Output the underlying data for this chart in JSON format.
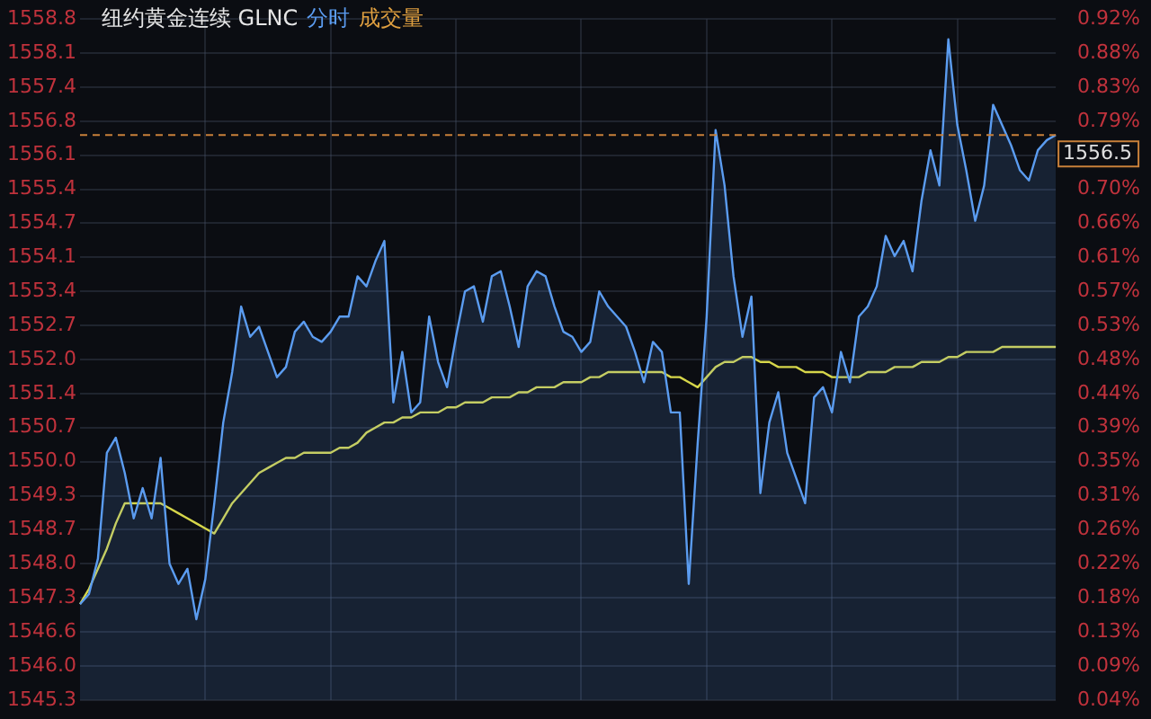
{
  "chart_data": {
    "type": "area",
    "title": "纽约黄金连续 GLNC",
    "annotations": [
      "成交量"
    ],
    "categories": [
      null,
      null,
      null,
      null,
      null,
      null,
      null,
      null,
      null,
      null,
      null,
      null,
      null,
      null,
      null,
      null,
      null,
      null,
      null,
      null,
      null,
      null,
      null,
      null,
      null,
      null,
      null,
      null,
      null,
      null,
      null,
      null,
      null,
      null,
      null,
      null,
      null,
      null,
      null,
      null,
      null,
      null,
      null,
      null,
      null,
      null,
      null,
      null,
      null,
      null,
      null,
      null,
      null,
      null,
      null,
      null,
      null,
      null,
      null,
      null,
      null,
      null,
      null,
      null,
      null,
      null,
      null,
      null,
      null,
      null,
      null,
      null,
      null,
      null,
      null,
      null,
      null,
      null,
      null,
      null,
      null,
      null,
      null,
      null,
      null,
      null,
      null,
      null,
      null,
      null,
      null,
      null,
      null,
      null,
      null,
      null,
      null,
      null,
      null,
      null,
      null,
      null,
      null,
      null,
      null,
      null,
      null,
      null,
      null,
      null
    ],
    "series": [
      {
        "name": "分时",
        "type": "area",
        "color": "#5b9cf0",
        "values": [
          1547.2,
          1547.4,
          1548.1,
          1550.2,
          1550.5,
          1549.8,
          1548.9,
          1549.5,
          1548.9,
          1550.1,
          1548.0,
          1547.6,
          1547.9,
          1546.9,
          1547.7,
          1549.2,
          1550.8,
          1551.8,
          1553.1,
          1552.5,
          1552.7,
          1552.2,
          1551.7,
          1551.9,
          1552.6,
          1552.8,
          1552.5,
          1552.4,
          1552.6,
          1552.9,
          1552.9,
          1553.7,
          1553.5,
          1554.0,
          1554.4,
          1551.2,
          1552.2,
          1551.0,
          1551.2,
          1552.9,
          1552.0,
          1551.5,
          1552.5,
          1553.4,
          1553.5,
          1552.8,
          1553.7,
          1553.8,
          1553.1,
          1552.3,
          1553.5,
          1553.8,
          1553.7,
          1553.1,
          1552.6,
          1552.5,
          1552.2,
          1552.4,
          1553.4,
          1553.1,
          1552.9,
          1552.7,
          1552.2,
          1551.6,
          1552.4,
          1552.2,
          1551.0,
          1551.0,
          1547.6,
          1550.4,
          1552.9,
          1556.6,
          1555.5,
          1553.7,
          1552.5,
          1553.3,
          1549.4,
          1550.8,
          1551.4,
          1550.2,
          1549.7,
          1549.2,
          1551.3,
          1551.5,
          1551.0,
          1552.2,
          1551.6,
          1552.9,
          1553.1,
          1553.5,
          1554.5,
          1554.1,
          1554.4,
          1553.8,
          1555.2,
          1556.2,
          1555.5,
          1558.4,
          1556.7,
          1555.8,
          1554.8,
          1555.5,
          1557.1,
          1556.7,
          1556.3,
          1555.8,
          1555.6,
          1556.2,
          1556.4,
          1556.5
        ]
      },
      {
        "type": "line",
        "color": "#d6d64a",
        "values": [
          1547.2,
          1547.5,
          1547.9,
          1548.3,
          1548.8,
          1549.2,
          1549.2,
          1549.2,
          1549.2,
          1549.2,
          1549.1,
          1549.0,
          1548.9,
          1548.8,
          1548.7,
          1548.6,
          1548.9,
          1549.2,
          1549.4,
          1549.6,
          1549.8,
          1549.9,
          1550.0,
          1550.1,
          1550.1,
          1550.2,
          1550.2,
          1550.2,
          1550.2,
          1550.3,
          1550.3,
          1550.4,
          1550.6,
          1550.7,
          1550.8,
          1550.8,
          1550.9,
          1550.9,
          1551.0,
          1551.0,
          1551.0,
          1551.1,
          1551.1,
          1551.2,
          1551.2,
          1551.2,
          1551.3,
          1551.3,
          1551.3,
          1551.4,
          1551.4,
          1551.5,
          1551.5,
          1551.5,
          1551.6,
          1551.6,
          1551.6,
          1551.7,
          1551.7,
          1551.8,
          1551.8,
          1551.8,
          1551.8,
          1551.8,
          1551.8,
          1551.8,
          1551.7,
          1551.7,
          1551.6,
          1551.5,
          1551.7,
          1551.9,
          1552.0,
          1552.0,
          1552.1,
          1552.1,
          1552.0,
          1552.0,
          1551.9,
          1551.9,
          1551.9,
          1551.8,
          1551.8,
          1551.8,
          1551.7,
          1551.7,
          1551.7,
          1551.7,
          1551.8,
          1551.8,
          1551.8,
          1551.9,
          1551.9,
          1551.9,
          1552.0,
          1552.0,
          1552.0,
          1552.1,
          1552.1,
          1552.2,
          1552.2,
          1552.2,
          1552.2,
          1552.3,
          1552.3,
          1552.3,
          1552.3,
          1552.3,
          1552.3,
          1552.3
        ]
      }
    ],
    "ylim": [
      1545.3,
      1558.8
    ],
    "yticks": [
      {
        "value": 1545.3,
        "label": "1545.3"
      },
      {
        "value": 1545.975,
        "label": "1546.0"
      },
      {
        "value": 1546.65,
        "label": "1546.6"
      },
      {
        "value": 1547.325,
        "label": "1547.3"
      },
      {
        "value": 1548.0,
        "label": "1548.0"
      },
      {
        "value": 1548.675,
        "label": "1548.7"
      },
      {
        "value": 1549.35,
        "label": "1549.3"
      },
      {
        "value": 1550.025,
        "label": "1550.0"
      },
      {
        "value": 1550.7,
        "label": "1550.7"
      },
      {
        "value": 1551.375,
        "label": "1551.4"
      },
      {
        "value": 1552.05,
        "label": "1552.0"
      },
      {
        "value": 1552.725,
        "label": "1552.7"
      },
      {
        "value": 1553.4,
        "label": "1553.4"
      },
      {
        "value": 1554.075,
        "label": "1554.1"
      },
      {
        "value": 1554.75,
        "label": "1554.7"
      },
      {
        "value": 1555.425,
        "label": "1555.4"
      },
      {
        "value": 1556.1,
        "label": "1556.1"
      },
      {
        "value": 1556.775,
        "label": "1556.8"
      },
      {
        "value": 1557.45,
        "label": "1557.4"
      },
      {
        "value": 1558.125,
        "label": "1558.1"
      },
      {
        "value": 1558.8,
        "label": "1558.8"
      }
    ],
    "y2lim": [
      0.0445,
      0.9195
    ],
    "y2ticks": [
      {
        "value": 0.0445,
        "label": "0.04%"
      },
      {
        "value": 0.0883,
        "label": "0.09%"
      },
      {
        "value": 0.132,
        "label": "0.13%"
      },
      {
        "value": 0.1758,
        "label": "0.18%"
      },
      {
        "value": 0.2195,
        "label": "0.22%"
      },
      {
        "value": 0.2633,
        "label": "0.26%"
      },
      {
        "value": 0.307,
        "label": "0.31%"
      },
      {
        "value": 0.3508,
        "label": "0.35%"
      },
      {
        "value": 0.3945,
        "label": "0.39%"
      },
      {
        "value": 0.4383,
        "label": "0.44%"
      },
      {
        "value": 0.482,
        "label": "0.48%"
      },
      {
        "value": 0.5258,
        "label": "0.53%"
      },
      {
        "value": 0.5695,
        "label": "0.57%"
      },
      {
        "value": 0.6133,
        "label": "0.61%"
      },
      {
        "value": 0.657,
        "label": "0.66%"
      },
      {
        "value": 0.7008,
        "label": "0.70%"
      },
      {
        "value": 0.7883,
        "label": "0.79%"
      },
      {
        "value": 0.832,
        "label": "0.83%"
      },
      {
        "value": 0.8758,
        "label": "0.88%"
      },
      {
        "value": 0.9195,
        "label": "0.92%"
      }
    ],
    "ref_lines": [
      {
        "axis": "y",
        "value": 1556.5,
        "label": "1556.5",
        "color": "#c8803a",
        "line_style": "dashed"
      }
    ],
    "grid": true
  }
}
